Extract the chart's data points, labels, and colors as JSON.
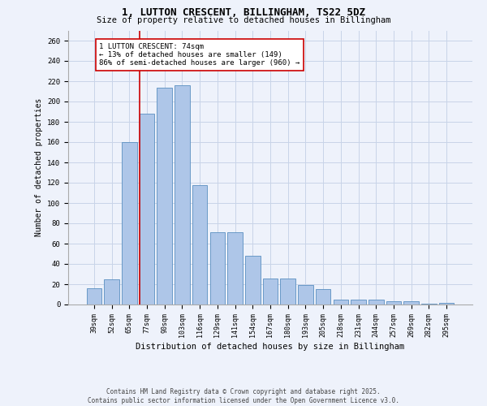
{
  "title_line1": "1, LUTTON CRESCENT, BILLINGHAM, TS22 5DZ",
  "title_line2": "Size of property relative to detached houses in Billingham",
  "xlabel": "Distribution of detached houses by size in Billingham",
  "ylabel": "Number of detached properties",
  "categories": [
    "39sqm",
    "52sqm",
    "65sqm",
    "77sqm",
    "90sqm",
    "103sqm",
    "116sqm",
    "129sqm",
    "141sqm",
    "154sqm",
    "167sqm",
    "180sqm",
    "193sqm",
    "205sqm",
    "218sqm",
    "231sqm",
    "244sqm",
    "257sqm",
    "269sqm",
    "282sqm",
    "295sqm"
  ],
  "values": [
    16,
    25,
    160,
    188,
    214,
    216,
    118,
    71,
    71,
    48,
    26,
    26,
    19,
    15,
    5,
    5,
    5,
    3,
    3,
    1,
    2
  ],
  "bar_color": "#aec6e8",
  "bar_edge_color": "#5a8fc0",
  "red_line_index": 3,
  "annotation_text": "1 LUTTON CRESCENT: 74sqm\n← 13% of detached houses are smaller (149)\n86% of semi-detached houses are larger (960) →",
  "annotation_box_color": "#ffffff",
  "annotation_box_edge_color": "#cc0000",
  "red_line_color": "#cc0000",
  "background_color": "#eef2fb",
  "grid_color": "#c8d4e8",
  "footer_text": "Contains HM Land Registry data © Crown copyright and database right 2025.\nContains public sector information licensed under the Open Government Licence v3.0.",
  "ylim": [
    0,
    270
  ],
  "yticks": [
    0,
    20,
    40,
    60,
    80,
    100,
    120,
    140,
    160,
    180,
    200,
    220,
    240,
    260
  ]
}
